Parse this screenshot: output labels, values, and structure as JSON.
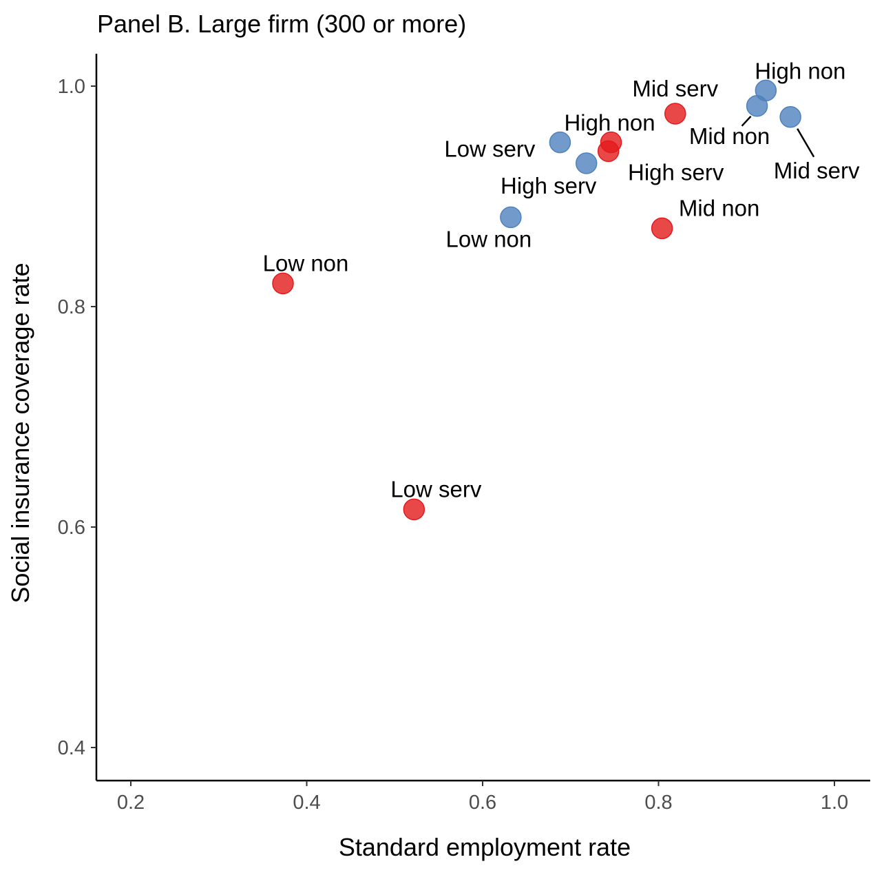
{
  "chart_data": {
    "type": "scatter",
    "title": "Panel B. Large firm (300 or more)",
    "xlabel": "Standard employment rate",
    "ylabel": "Social insurance coverage rate",
    "xlim": [
      0.17,
      1.04
    ],
    "ylim": [
      0.37,
      1.03
    ],
    "x_ticks": [
      0.2,
      0.4,
      0.6,
      0.8,
      1.0
    ],
    "x_tick_labels": [
      "0.2",
      "0.4",
      "0.6",
      "0.8",
      "1.0"
    ],
    "y_ticks": [
      0.4,
      0.6,
      0.8,
      1.0
    ],
    "y_tick_labels": [
      "0.4",
      "0.6",
      "0.8",
      "1.0"
    ],
    "grid": false,
    "legend": "none",
    "series": [
      {
        "color": "#e41a1c",
        "points": [
          {
            "label": "Low non",
            "x": 0.373,
            "y": 0.821
          },
          {
            "label": "Low serv",
            "x": 0.522,
            "y": 0.616
          },
          {
            "label": "Mid non",
            "x": 0.804,
            "y": 0.871
          },
          {
            "label": "Mid serv",
            "x": 0.819,
            "y": 0.975
          },
          {
            "label": "High non",
            "x": 0.746,
            "y": 0.949
          },
          {
            "label": "High serv",
            "x": 0.743,
            "y": 0.941
          }
        ]
      },
      {
        "color": "#4f81bd",
        "points": [
          {
            "label": "Low non",
            "x": 0.632,
            "y": 0.881
          },
          {
            "label": "Low serv",
            "x": 0.688,
            "y": 0.949
          },
          {
            "label": "High serv",
            "x": 0.718,
            "y": 0.93
          },
          {
            "label": "Mid non",
            "x": 0.912,
            "y": 0.982
          },
          {
            "label": "High non",
            "x": 0.922,
            "y": 0.996
          },
          {
            "label": "Mid serv",
            "x": 0.95,
            "y": 0.972
          }
        ]
      }
    ]
  }
}
